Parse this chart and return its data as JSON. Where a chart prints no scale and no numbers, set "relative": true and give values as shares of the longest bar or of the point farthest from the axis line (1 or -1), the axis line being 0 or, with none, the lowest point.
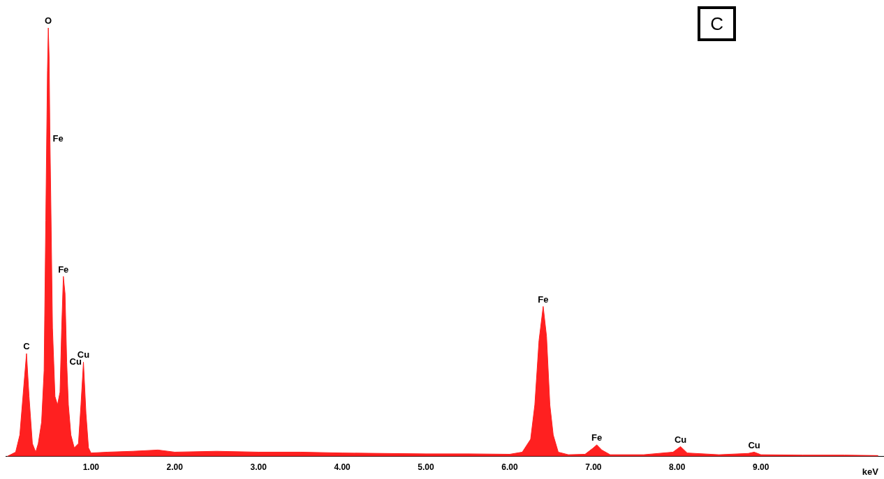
{
  "chart_data": {
    "type": "area",
    "relative": true,
    "xlabel": "keV",
    "xlim": [
      -0.02,
      10.47
    ],
    "xticks": [
      {
        "value": 1,
        "label": "1.00"
      },
      {
        "value": 2,
        "label": "2.00"
      },
      {
        "value": 3,
        "label": "3.00"
      },
      {
        "value": 4,
        "label": "4.00"
      },
      {
        "value": 5,
        "label": "5.00"
      },
      {
        "value": 6,
        "label": "6.00"
      },
      {
        "value": 7,
        "label": "7.00"
      },
      {
        "value": 8,
        "label": "8.00"
      },
      {
        "value": 9,
        "label": "9.00"
      }
    ],
    "grid": false,
    "legend": false,
    "series": [
      {
        "color": "#ff2020",
        "x": [
          0.0,
          0.1,
          0.15,
          0.2,
          0.23,
          0.26,
          0.3,
          0.34,
          0.37,
          0.41,
          0.44,
          0.46,
          0.48,
          0.49,
          0.5,
          0.51,
          0.52,
          0.54,
          0.57,
          0.6,
          0.63,
          0.65,
          0.67,
          0.69,
          0.71,
          0.73,
          0.76,
          0.8,
          0.85,
          0.88,
          0.91,
          0.94,
          0.97,
          1.0,
          1.2,
          1.5,
          1.8,
          2.0,
          2.5,
          3.0,
          3.5,
          4.0,
          4.5,
          5.0,
          5.5,
          6.0,
          6.15,
          6.25,
          6.3,
          6.35,
          6.4,
          6.44,
          6.48,
          6.52,
          6.58,
          6.7,
          6.9,
          7.0,
          7.04,
          7.1,
          7.2,
          7.6,
          7.95,
          8.04,
          8.12,
          8.5,
          8.85,
          8.92,
          9.0,
          9.5,
          10.0,
          10.4
        ],
        "values": [
          0,
          0.01,
          0.05,
          0.17,
          0.24,
          0.14,
          0.03,
          0.01,
          0.03,
          0.08,
          0.2,
          0.55,
          0.9,
          1.0,
          0.93,
          0.74,
          0.6,
          0.3,
          0.14,
          0.12,
          0.15,
          0.3,
          0.42,
          0.38,
          0.22,
          0.12,
          0.05,
          0.02,
          0.03,
          0.12,
          0.22,
          0.1,
          0.02,
          0.008,
          0.01,
          0.012,
          0.015,
          0.01,
          0.012,
          0.01,
          0.01,
          0.008,
          0.007,
          0.006,
          0.006,
          0.005,
          0.01,
          0.04,
          0.12,
          0.27,
          0.35,
          0.28,
          0.12,
          0.05,
          0.01,
          0.004,
          0.005,
          0.02,
          0.027,
          0.015,
          0.004,
          0.004,
          0.01,
          0.023,
          0.008,
          0.004,
          0.007,
          0.01,
          0.004,
          0.003,
          0.003,
          0.002
        ]
      }
    ],
    "annotations": [
      "C",
      {
        "text": "C",
        "x": 0.23,
        "y": 0.24
      },
      {
        "text": "O",
        "x": 0.49,
        "y": 1.0
      },
      {
        "text": "Fe",
        "x": 0.51,
        "y": 0.74
      },
      {
        "text": "Fe",
        "x": 0.67,
        "y": 0.42
      },
      {
        "text": "Cu",
        "x": 0.71,
        "y": 0.22
      },
      {
        "text": "Cu",
        "x": 0.91,
        "y": 0.22
      },
      {
        "text": "Fe",
        "x": 6.4,
        "y": 0.35
      },
      {
        "text": "Fe",
        "x": 7.04,
        "y": 0.027
      },
      {
        "text": "Cu",
        "x": 8.04,
        "y": 0.023
      },
      {
        "text": "Cu",
        "x": 8.92,
        "y": 0.01
      }
    ]
  }
}
